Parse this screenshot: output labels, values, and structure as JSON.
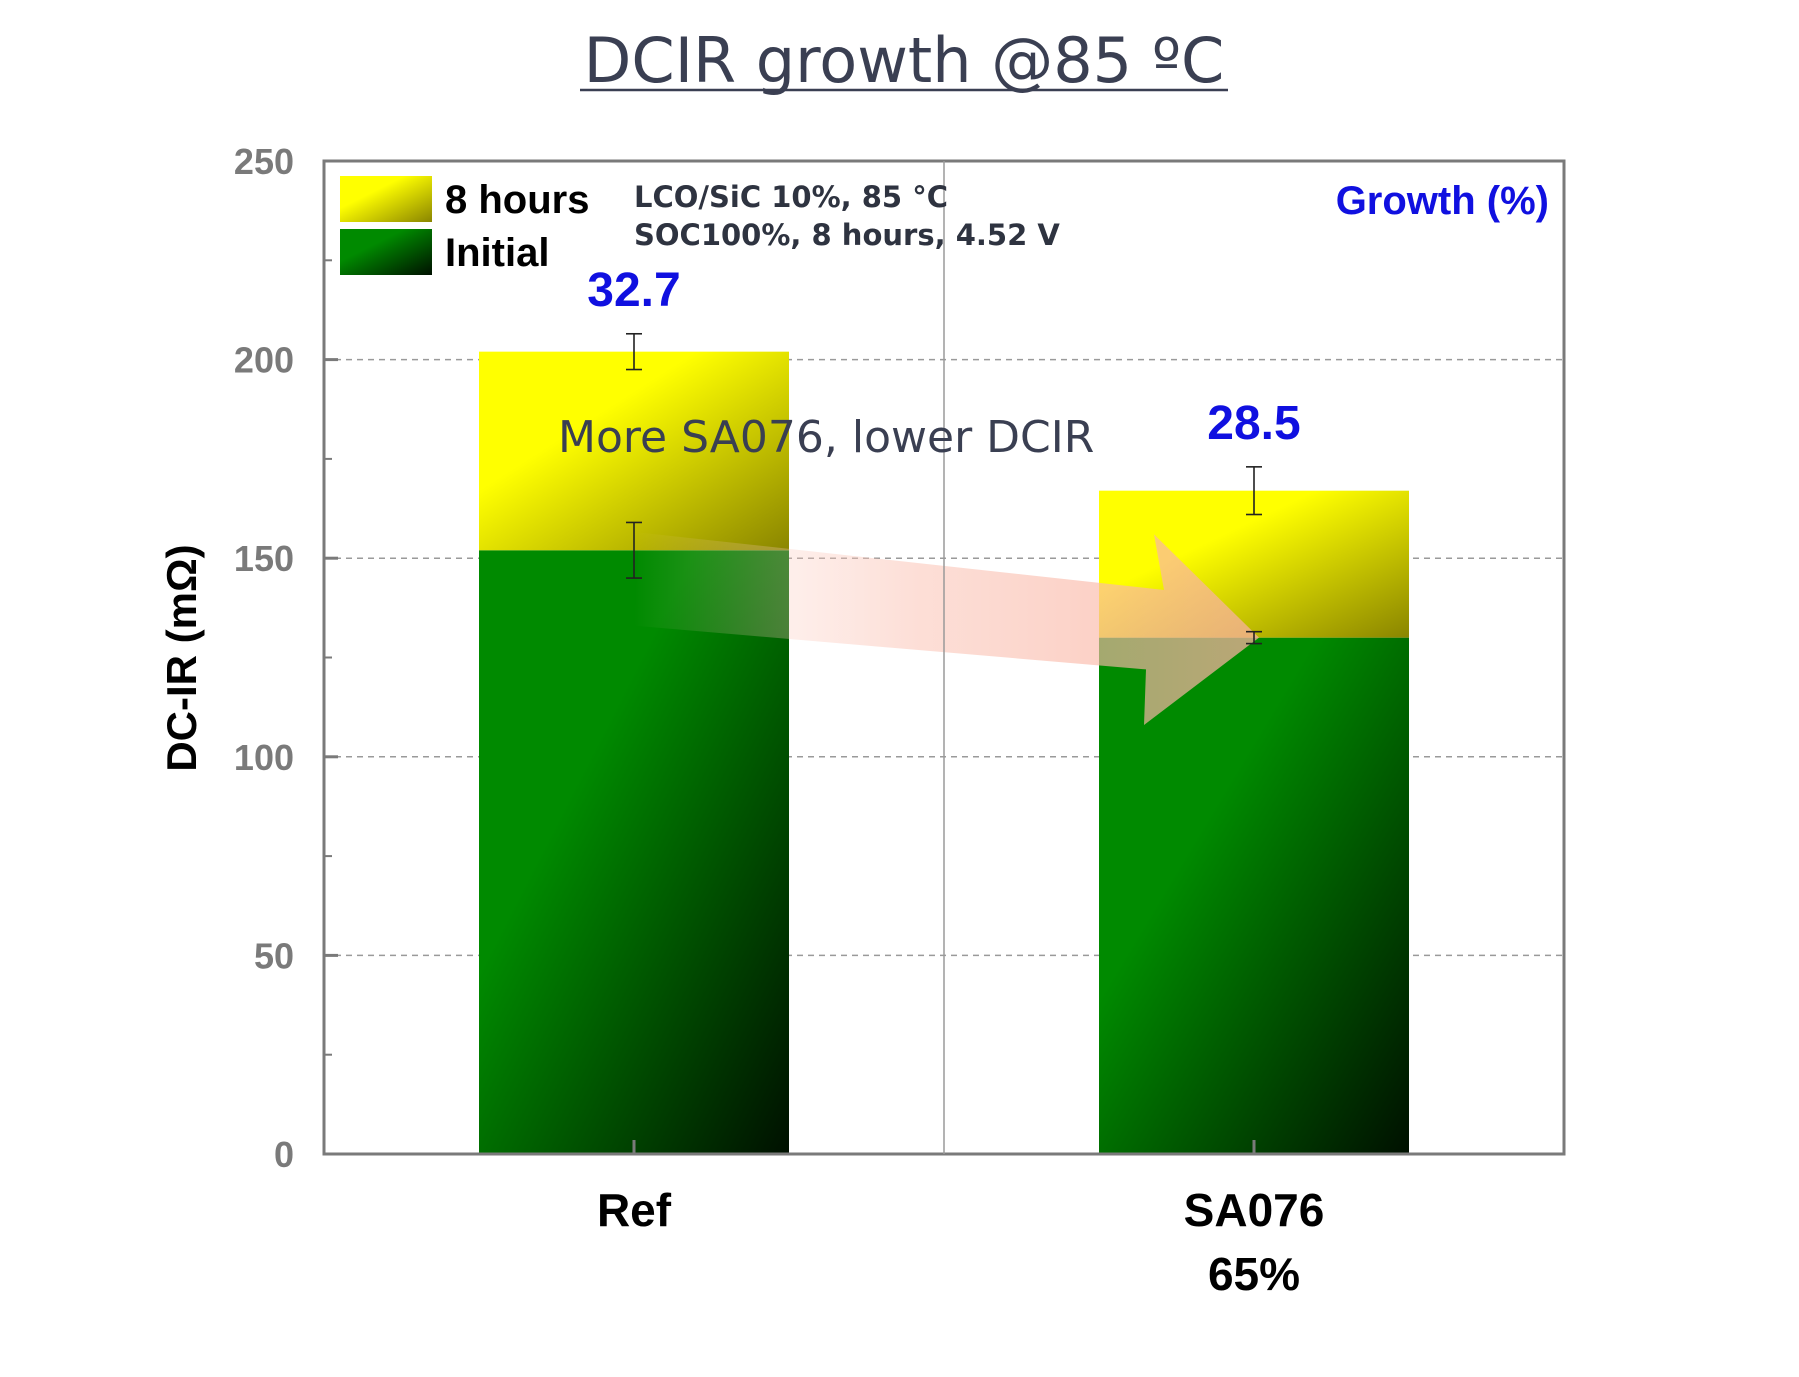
{
  "chart_data": {
    "type": "bar",
    "stacked": true,
    "title": "DCIR growth @85 ºC",
    "ylabel": "DC-IR (mΩ)",
    "xlabel": "",
    "ylim": [
      0,
      250
    ],
    "yticks": [
      0,
      50,
      100,
      150,
      200,
      250
    ],
    "grid": "horizontal dashed",
    "categories": [
      "Ref",
      "SA076"
    ],
    "category_sublabels": [
      "",
      "65%"
    ],
    "series": [
      {
        "name": "Initial",
        "values": [
          152,
          130
        ],
        "error": [
          7,
          1.5
        ],
        "color_start": "#008a00",
        "color_end": "#001400"
      },
      {
        "name": "8 hours",
        "values": [
          50,
          37
        ],
        "totals": [
          202,
          167
        ],
        "error": [
          4.5,
          6
        ],
        "color_start": "#ffff00",
        "color_end": "#8a8500"
      }
    ],
    "growth_header": "Growth (%)",
    "growth_values": [
      "32.7",
      "28.5"
    ],
    "conditions": [
      "LCO/SiC 10%, 85 °C",
      "SOC100%, 8 hours, 4.52 V"
    ],
    "annotation": "More SA076, lower DCIR",
    "legend_placement": "top-left",
    "colors": {
      "growth_text": "#1010e0",
      "frame": "#7a7a7a",
      "arrow": "#f8b0a0"
    }
  }
}
